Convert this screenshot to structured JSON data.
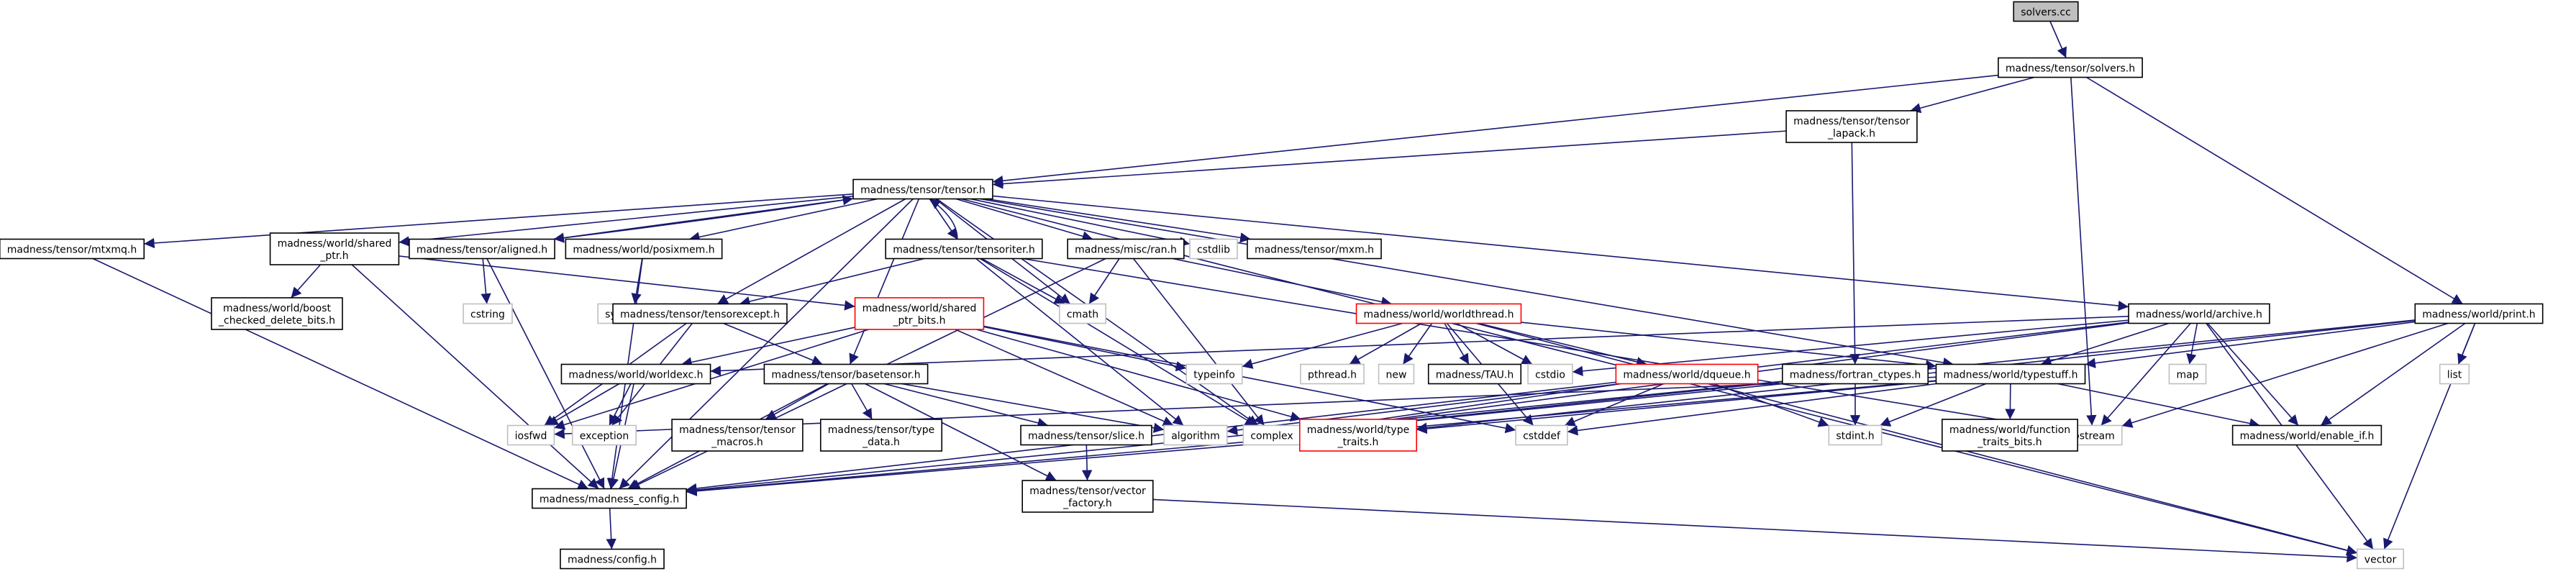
{
  "colors": {
    "edge": "#191970",
    "node_border_normal": "#000000",
    "node_border_truncated": "#ff0000",
    "node_border_system": "#bfbfbf",
    "root_fill": "#bfbfbf",
    "node_fill": "#ffffff"
  },
  "nodes": [
    {
      "id": "solvers_cc",
      "lines": [
        "solvers.cc"
      ],
      "kind": "root"
    },
    {
      "id": "solvers_h",
      "lines": [
        "madness/tensor/solvers.h"
      ],
      "kind": "normal"
    },
    {
      "id": "tensor_lapack_h",
      "lines": [
        "madness/tensor/tensor",
        "_lapack.h"
      ],
      "kind": "normal"
    },
    {
      "id": "tensor_h",
      "lines": [
        "madness/tensor/tensor.h"
      ],
      "kind": "normal"
    },
    {
      "id": "mtxmq_h",
      "lines": [
        "madness/tensor/mtxmq.h"
      ],
      "kind": "normal"
    },
    {
      "id": "shared_ptr_h",
      "lines": [
        "madness/world/shared",
        "_ptr.h"
      ],
      "kind": "normal"
    },
    {
      "id": "aligned_h",
      "lines": [
        "madness/tensor/aligned.h"
      ],
      "kind": "normal"
    },
    {
      "id": "posixmem_h",
      "lines": [
        "madness/world/posixmem.h"
      ],
      "kind": "normal"
    },
    {
      "id": "tensoriter_h",
      "lines": [
        "madness/tensor/tensoriter.h"
      ],
      "kind": "normal"
    },
    {
      "id": "ran_h",
      "lines": [
        "madness/misc/ran.h"
      ],
      "kind": "normal"
    },
    {
      "id": "cstdlib",
      "lines": [
        "cstdlib"
      ],
      "kind": "system"
    },
    {
      "id": "mxm_h",
      "lines": [
        "madness/tensor/mxm.h"
      ],
      "kind": "normal"
    },
    {
      "id": "boost_checked",
      "lines": [
        "madness/world/boost",
        "_checked_delete_bits.h"
      ],
      "kind": "normal"
    },
    {
      "id": "cstring",
      "lines": [
        "cstring"
      ],
      "kind": "system"
    },
    {
      "id": "sys_errno",
      "lines": [
        "sys/errno.h"
      ],
      "kind": "system"
    },
    {
      "id": "tensorexcept_h",
      "lines": [
        "madness/tensor/tensorexcept.h"
      ],
      "kind": "normal"
    },
    {
      "id": "shared_ptr_bits_h",
      "lines": [
        "madness/world/shared",
        "_ptr_bits.h"
      ],
      "kind": "truncated"
    },
    {
      "id": "cmath",
      "lines": [
        "cmath"
      ],
      "kind": "system"
    },
    {
      "id": "worldthread_h",
      "lines": [
        "madness/world/worldthread.h"
      ],
      "kind": "truncated"
    },
    {
      "id": "archive_h",
      "lines": [
        "madness/world/archive.h"
      ],
      "kind": "normal"
    },
    {
      "id": "print_h",
      "lines": [
        "madness/world/print.h"
      ],
      "kind": "normal"
    },
    {
      "id": "typeinfo",
      "lines": [
        "typeinfo"
      ],
      "kind": "system"
    },
    {
      "id": "worldexc_h",
      "lines": [
        "madness/world/worldexc.h"
      ],
      "kind": "normal"
    },
    {
      "id": "basetensor_h",
      "lines": [
        "madness/tensor/basetensor.h"
      ],
      "kind": "normal"
    },
    {
      "id": "pthread_h",
      "lines": [
        "pthread.h"
      ],
      "kind": "system"
    },
    {
      "id": "new",
      "lines": [
        "new"
      ],
      "kind": "system"
    },
    {
      "id": "tau_h",
      "lines": [
        "madness/TAU.h"
      ],
      "kind": "normal"
    },
    {
      "id": "cstdio",
      "lines": [
        "cstdio"
      ],
      "kind": "system"
    },
    {
      "id": "dqueue_h",
      "lines": [
        "madness/world/dqueue.h"
      ],
      "kind": "truncated"
    },
    {
      "id": "fortran_ctypes_h",
      "lines": [
        "madness/fortran_ctypes.h"
      ],
      "kind": "normal"
    },
    {
      "id": "typestuff_h",
      "lines": [
        "madness/world/typestuff.h"
      ],
      "kind": "normal"
    },
    {
      "id": "map",
      "lines": [
        "map"
      ],
      "kind": "system"
    },
    {
      "id": "list",
      "lines": [
        "list"
      ],
      "kind": "system"
    },
    {
      "id": "iosfwd",
      "lines": [
        "iosfwd"
      ],
      "kind": "system"
    },
    {
      "id": "exception",
      "lines": [
        "exception"
      ],
      "kind": "system"
    },
    {
      "id": "tensor_macros_h",
      "lines": [
        "madness/tensor/tensor",
        "_macros.h"
      ],
      "kind": "normal"
    },
    {
      "id": "type_data_h",
      "lines": [
        "madness/tensor/type",
        "_data.h"
      ],
      "kind": "normal"
    },
    {
      "id": "slice_h",
      "lines": [
        "madness/tensor/slice.h"
      ],
      "kind": "normal"
    },
    {
      "id": "algorithm",
      "lines": [
        "algorithm"
      ],
      "kind": "system"
    },
    {
      "id": "complex",
      "lines": [
        "complex"
      ],
      "kind": "system"
    },
    {
      "id": "type_traits_h",
      "lines": [
        "madness/world/type",
        "_traits.h"
      ],
      "kind": "truncated"
    },
    {
      "id": "cstddef",
      "lines": [
        "cstddef"
      ],
      "kind": "system"
    },
    {
      "id": "stdint_h",
      "lines": [
        "stdint.h"
      ],
      "kind": "system"
    },
    {
      "id": "iostream",
      "lines": [
        "iostream"
      ],
      "kind": "system"
    },
    {
      "id": "enable_if_h",
      "lines": [
        "madness/world/enable_if.h"
      ],
      "kind": "normal"
    },
    {
      "id": "function_traits_h",
      "lines": [
        "madness/world/function",
        "_traits_bits.h"
      ],
      "kind": "normal"
    },
    {
      "id": "madness_config_h",
      "lines": [
        "madness/madness_config.h"
      ],
      "kind": "normal"
    },
    {
      "id": "vector_factory_h",
      "lines": [
        "madness/tensor/vector",
        "_factory.h"
      ],
      "kind": "normal"
    },
    {
      "id": "config_h",
      "lines": [
        "madness/config.h"
      ],
      "kind": "normal"
    },
    {
      "id": "vector",
      "lines": [
        "vector"
      ],
      "kind": "system"
    }
  ],
  "edges": [
    [
      "solvers_cc",
      "solvers_h"
    ],
    [
      "solvers_h",
      "tensor_h"
    ],
    [
      "solvers_h",
      "tensor_lapack_h"
    ],
    [
      "solvers_h",
      "iostream"
    ],
    [
      "solvers_h",
      "print_h"
    ],
    [
      "tensor_lapack_h",
      "tensor_h"
    ],
    [
      "tensor_lapack_h",
      "fortran_ctypes_h"
    ],
    [
      "tensor_h",
      "mtxmq_h"
    ],
    [
      "tensor_h",
      "shared_ptr_h"
    ],
    [
      "tensor_h",
      "aligned_h"
    ],
    [
      "tensor_h",
      "posixmem_h"
    ],
    [
      "tensor_h",
      "tensoriter_h"
    ],
    [
      "tensor_h",
      "ran_h"
    ],
    [
      "tensor_h",
      "cstdlib"
    ],
    [
      "tensor_h",
      "mxm_h"
    ],
    [
      "tensor_h",
      "tensorexcept_h"
    ],
    [
      "tensor_h",
      "cmath"
    ],
    [
      "tensor_h",
      "archive_h"
    ],
    [
      "tensor_h",
      "basetensor_h"
    ],
    [
      "tensor_h",
      "complex"
    ],
    [
      "tensor_h",
      "madness_config_h"
    ],
    [
      "tensor_h",
      "vector"
    ],
    [
      "tensor_h",
      "typestuff_h"
    ],
    [
      "mtxmq_h",
      "madness_config_h"
    ],
    [
      "shared_ptr_h",
      "boost_checked"
    ],
    [
      "shared_ptr_h",
      "shared_ptr_bits_h"
    ],
    [
      "shared_ptr_h",
      "madness_config_h"
    ],
    [
      "aligned_h",
      "tensor_h"
    ],
    [
      "aligned_h",
      "cstring"
    ],
    [
      "aligned_h",
      "madness_config_h"
    ],
    [
      "posixmem_h",
      "sys_errno"
    ],
    [
      "posixmem_h",
      "madness_config_h"
    ],
    [
      "tensoriter_h",
      "tensor_h"
    ],
    [
      "tensoriter_h",
      "tensorexcept_h"
    ],
    [
      "tensoriter_h",
      "cmath"
    ],
    [
      "tensoriter_h",
      "iostream"
    ],
    [
      "tensoriter_h",
      "algorithm"
    ],
    [
      "tensoriter_h",
      "complex"
    ],
    [
      "ran_h",
      "cmath"
    ],
    [
      "ran_h",
      "worldthread_h"
    ],
    [
      "ran_h",
      "complex"
    ],
    [
      "ran_h",
      "madness_config_h"
    ],
    [
      "tensorexcept_h",
      "basetensor_h"
    ],
    [
      "tensorexcept_h",
      "iosfwd"
    ],
    [
      "tensorexcept_h",
      "exception"
    ],
    [
      "shared_ptr_bits_h",
      "typeinfo"
    ],
    [
      "shared_ptr_bits_h",
      "worldexc_h"
    ],
    [
      "shared_ptr_bits_h",
      "algorithm"
    ],
    [
      "shared_ptr_bits_h",
      "type_traits_h"
    ],
    [
      "shared_ptr_bits_h",
      "cstddef"
    ],
    [
      "shared_ptr_bits_h",
      "iosfwd"
    ],
    [
      "worldthread_h",
      "pthread_h"
    ],
    [
      "worldthread_h",
      "new"
    ],
    [
      "worldthread_h",
      "tau_h"
    ],
    [
      "worldthread_h",
      "cstdio"
    ],
    [
      "worldthread_h",
      "dqueue_h"
    ],
    [
      "worldthread_h",
      "typestuff_h"
    ],
    [
      "worldthread_h",
      "typeinfo"
    ],
    [
      "worldthread_h",
      "cstddef"
    ],
    [
      "worldthread_h",
      "vector"
    ],
    [
      "archive_h",
      "typestuff_h"
    ],
    [
      "archive_h",
      "map"
    ],
    [
      "archive_h",
      "iostream"
    ],
    [
      "archive_h",
      "enable_if_h"
    ],
    [
      "archive_h",
      "vector"
    ],
    [
      "archive_h",
      "cstdio"
    ],
    [
      "archive_h",
      "worldexc_h"
    ],
    [
      "archive_h",
      "complex"
    ],
    [
      "archive_h",
      "algorithm"
    ],
    [
      "print_h",
      "list"
    ],
    [
      "print_h",
      "iostream"
    ],
    [
      "print_h",
      "enable_if_h"
    ],
    [
      "print_h",
      "vector"
    ],
    [
      "print_h",
      "typestuff_h"
    ],
    [
      "print_h",
      "complex"
    ],
    [
      "print_h",
      "type_traits_h"
    ],
    [
      "worldexc_h",
      "iosfwd"
    ],
    [
      "worldexc_h",
      "exception"
    ],
    [
      "worldexc_h",
      "madness_config_h"
    ],
    [
      "basetensor_h",
      "tensor_macros_h"
    ],
    [
      "basetensor_h",
      "type_data_h"
    ],
    [
      "basetensor_h",
      "slice_h"
    ],
    [
      "basetensor_h",
      "vector_factory_h"
    ],
    [
      "basetensor_h",
      "madness_config_h"
    ],
    [
      "basetensor_h",
      "algorithm"
    ],
    [
      "dqueue_h",
      "cstddef"
    ],
    [
      "dqueue_h",
      "stdint_h"
    ],
    [
      "dqueue_h",
      "complex"
    ],
    [
      "dqueue_h",
      "madness_config_h"
    ],
    [
      "fortran_ctypes_h",
      "complex"
    ],
    [
      "fortran_ctypes_h",
      "stdint_h"
    ],
    [
      "fortran_ctypes_h",
      "madness_config_h"
    ],
    [
      "typestuff_h",
      "function_traits_h"
    ],
    [
      "typestuff_h",
      "enable_if_h"
    ],
    [
      "typestuff_h",
      "stdint_h"
    ],
    [
      "typestuff_h",
      "type_traits_h"
    ],
    [
      "typestuff_h",
      "cstddef"
    ],
    [
      "typestuff_h",
      "iosfwd"
    ],
    [
      "typestuff_h",
      "madness_config_h"
    ],
    [
      "slice_h",
      "vector_factory_h"
    ],
    [
      "type_traits_h",
      "madness_config_h"
    ],
    [
      "vector_factory_h",
      "vector"
    ],
    [
      "madness_config_h",
      "config_h"
    ]
  ]
}
